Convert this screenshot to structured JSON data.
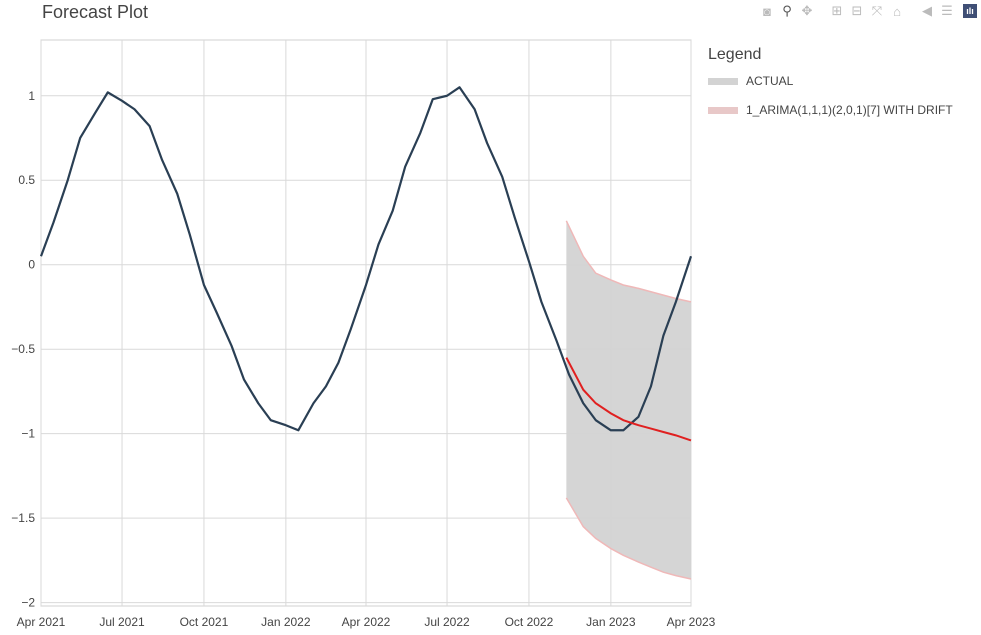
{
  "title": "Forecast Plot",
  "modebar": [
    {
      "name": "camera-icon",
      "glyph": "◙"
    },
    {
      "name": "zoom-icon",
      "glyph": "⚲"
    },
    {
      "name": "pan-icon",
      "glyph": "✥"
    },
    {
      "name": "zoom-in-icon",
      "glyph": "⊞"
    },
    {
      "name": "zoom-out-icon",
      "glyph": "⊟"
    },
    {
      "name": "autoscale-icon",
      "glyph": "⤧"
    },
    {
      "name": "home-icon",
      "glyph": "⌂"
    },
    {
      "name": "spike-lines-icon",
      "glyph": "◀"
    },
    {
      "name": "compare-hover-icon",
      "glyph": "☰"
    }
  ],
  "legend": {
    "title": "Legend",
    "items": [
      {
        "label": "ACTUAL",
        "color": "#d3d3d3"
      },
      {
        "label": "1_ARIMA(1,1,1)(2,0,1)[7] WITH DRIFT",
        "color": "#e8c8c8"
      }
    ]
  },
  "chart_data": {
    "type": "line",
    "xlim": [
      "2021-04-01",
      "2023-04-01"
    ],
    "ylim": [
      -2.02,
      1.33
    ],
    "x_ticks": [
      {
        "date": "2021-04-01",
        "label": "Apr 2021"
      },
      {
        "date": "2021-07-01",
        "label": "Jul 2021"
      },
      {
        "date": "2021-10-01",
        "label": "Oct 2021"
      },
      {
        "date": "2022-01-01",
        "label": "Jan 2022"
      },
      {
        "date": "2022-04-01",
        "label": "Apr 2022"
      },
      {
        "date": "2022-07-01",
        "label": "Jul 2022"
      },
      {
        "date": "2022-10-01",
        "label": "Oct 2022"
      },
      {
        "date": "2023-01-01",
        "label": "Jan 2023"
      },
      {
        "date": "2023-04-01",
        "label": "Apr 2023"
      }
    ],
    "y_ticks": [
      {
        "value": 1,
        "label": "1"
      },
      {
        "value": 0.5,
        "label": "0.5"
      },
      {
        "value": 0,
        "label": "0"
      },
      {
        "value": -0.5,
        "label": "−0.5"
      },
      {
        "value": -1,
        "label": "−1"
      },
      {
        "value": -1.5,
        "label": "−1.5"
      },
      {
        "value": -2,
        "label": "−2"
      }
    ],
    "grid": true,
    "legend_position": "right",
    "series": [
      {
        "name": "ACTUAL",
        "color": "#2a3f54",
        "dates": [
          "2021-04-01",
          "2021-04-15",
          "2021-05-01",
          "2021-05-15",
          "2021-06-01",
          "2021-06-15",
          "2021-07-01",
          "2021-07-15",
          "2021-08-01",
          "2021-08-15",
          "2021-09-01",
          "2021-09-15",
          "2021-10-01",
          "2021-10-15",
          "2021-11-01",
          "2021-11-15",
          "2021-12-01",
          "2021-12-15",
          "2022-01-01",
          "2022-01-15",
          "2022-02-01",
          "2022-02-15",
          "2022-03-01",
          "2022-03-15",
          "2022-04-01",
          "2022-04-15",
          "2022-05-01",
          "2022-05-15",
          "2022-06-01",
          "2022-06-15",
          "2022-07-01",
          "2022-07-15",
          "2022-08-01",
          "2022-08-15",
          "2022-09-01",
          "2022-09-15",
          "2022-10-01",
          "2022-10-15",
          "2022-11-01",
          "2022-11-15",
          "2022-12-01",
          "2022-12-15",
          "2023-01-01",
          "2023-01-15",
          "2023-02-01",
          "2023-02-15",
          "2023-03-01",
          "2023-03-15",
          "2023-04-01"
        ],
        "values": [
          0.05,
          0.25,
          0.5,
          0.75,
          0.9,
          1.02,
          0.97,
          0.92,
          0.82,
          0.62,
          0.42,
          0.18,
          -0.12,
          -0.28,
          -0.48,
          -0.68,
          -0.82,
          -0.92,
          -0.95,
          -0.98,
          -0.82,
          -0.72,
          -0.58,
          -0.38,
          -0.12,
          0.12,
          0.32,
          0.58,
          0.78,
          0.98,
          1.0,
          1.05,
          0.92,
          0.72,
          0.52,
          0.28,
          0.02,
          -0.22,
          -0.45,
          -0.65,
          -0.82,
          -0.92,
          -0.98,
          -0.98,
          -0.9,
          -0.72,
          -0.42,
          -0.22,
          0.05
        ]
      },
      {
        "name": "1_ARIMA(1,1,1)(2,0,1)[7] WITH DRIFT",
        "color": "#e02020",
        "band_color": "#d3d3d3",
        "band_edge_color": "#efb8b8",
        "dates": [
          "2022-11-12",
          "2022-12-01",
          "2022-12-15",
          "2023-01-01",
          "2023-01-15",
          "2023-02-01",
          "2023-02-15",
          "2023-03-01",
          "2023-03-15",
          "2023-04-01"
        ],
        "values": [
          -0.55,
          -0.74,
          -0.82,
          -0.88,
          -0.92,
          -0.95,
          -0.97,
          -0.99,
          -1.01,
          -1.04
        ],
        "upper": [
          0.26,
          0.05,
          -0.05,
          -0.09,
          -0.12,
          -0.14,
          -0.16,
          -0.18,
          -0.2,
          -0.22
        ],
        "lower": [
          -1.38,
          -1.55,
          -1.62,
          -1.68,
          -1.72,
          -1.76,
          -1.79,
          -1.82,
          -1.84,
          -1.86
        ]
      }
    ]
  }
}
